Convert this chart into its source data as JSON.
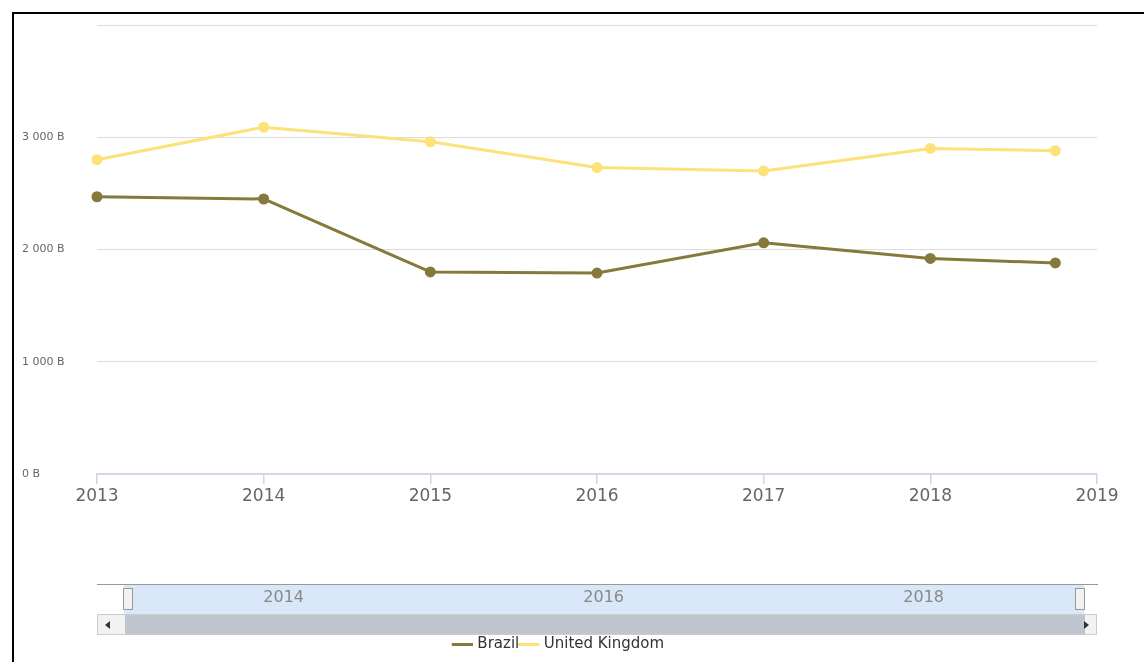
{
  "chart_data": {
    "type": "line",
    "x": [
      "2013",
      "2014",
      "2015",
      "2016",
      "2017",
      "2018",
      "2018-10"
    ],
    "series": [
      {
        "name": "Brazil",
        "color": "#857a3c",
        "values": [
          2470,
          2450,
          1800,
          1790,
          2060,
          1920,
          1880
        ]
      },
      {
        "name": "United Kingdom",
        "color": "#fde27a",
        "values": [
          2800,
          3090,
          2960,
          2730,
          2700,
          2900,
          2880
        ]
      }
    ],
    "xlim": [
      "2013",
      "2019"
    ],
    "xticks": [
      "2013",
      "2014",
      "2015",
      "2016",
      "2017",
      "2018",
      "2019"
    ],
    "x2lim": [
      "2012-11",
      "2019-02"
    ],
    "x2ticks": [
      "2014",
      "2016",
      "2018"
    ],
    "ylim": [
      0,
      4000
    ],
    "yticks": [
      {
        "value": 0,
        "label": "0 B"
      },
      {
        "value": 1000,
        "label": "1 000 B"
      },
      {
        "value": 2000,
        "label": "2 000 B"
      },
      {
        "value": 3000,
        "label": "3 000 B"
      },
      {
        "value": 4000,
        "label": null
      }
    ],
    "grid": "y",
    "legend": "bottom",
    "marker": "circle",
    "line_style": "solid"
  }
}
